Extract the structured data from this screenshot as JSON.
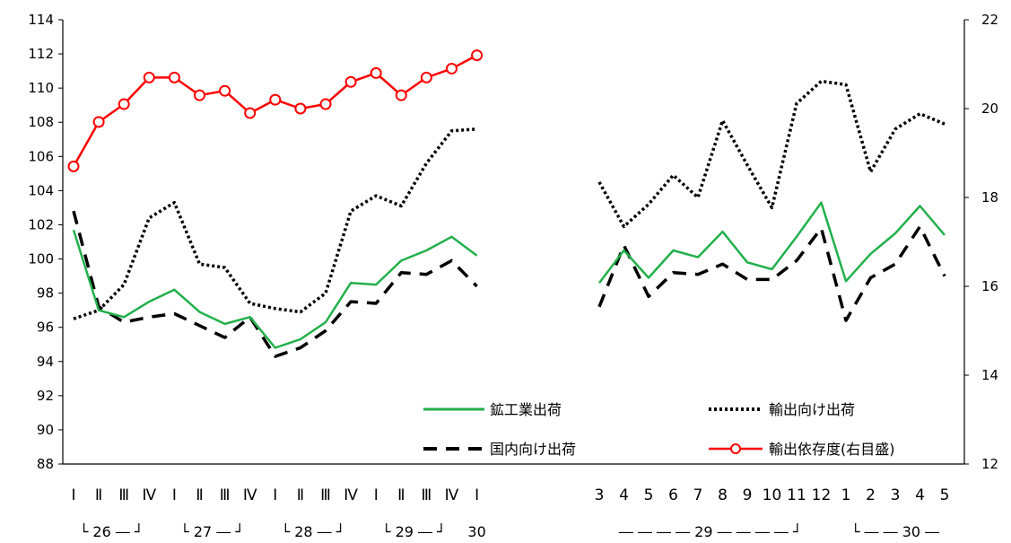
{
  "chart_data": {
    "type": "line",
    "title": "",
    "xlabel": "",
    "ylabel": "",
    "ylim": [
      88,
      114
    ],
    "y2lim": [
      12,
      22
    ],
    "yticks": [
      88,
      90,
      92,
      94,
      96,
      98,
      100,
      102,
      104,
      106,
      108,
      110,
      112,
      114
    ],
    "y2ticks": [
      12,
      14,
      16,
      18,
      20,
      22
    ],
    "grid": false,
    "legend_position": "bottom-right inside plot",
    "colors": {
      "mining": "#22b04b",
      "domestic": "#000000",
      "export": "#000000",
      "dependency": "#ff0000"
    },
    "quarter_labels": [
      "Ⅰ",
      "Ⅱ",
      "Ⅲ",
      "Ⅳ",
      "Ⅰ",
      "Ⅱ",
      "Ⅲ",
      "Ⅳ",
      "Ⅰ",
      "Ⅱ",
      "Ⅲ",
      "Ⅳ",
      "Ⅰ",
      "Ⅱ",
      "Ⅲ",
      "Ⅳ",
      "Ⅰ"
    ],
    "month_labels": [
      "3",
      "4",
      "5",
      "6",
      "7",
      "8",
      "9",
      "10",
      "11",
      "12",
      "1",
      "2",
      "3",
      "4",
      "5"
    ],
    "quarter_group_labels": [
      "└ 26 ― ┘",
      "└ 27 ― ┘",
      "└ 28 ― ┘",
      "└ 29 ― ┘",
      "30"
    ],
    "month_group_labels": [
      "― ― ― ― 29 ― ― ― ― ┘",
      "└ ― ― 30 ―"
    ],
    "legend": {
      "mining": "鉱工業出荷",
      "export": "輸出向け出荷",
      "domestic": "国内向け出荷",
      "dependency": "輸出依存度(右目盛)"
    },
    "series": [
      {
        "key": "mining",
        "name": "鉱工業出荷",
        "axis": "left",
        "quarterly": [
          101.7,
          97.0,
          96.6,
          97.5,
          98.2,
          96.9,
          96.2,
          96.6,
          94.8,
          95.3,
          96.3,
          98.6,
          98.5,
          99.9,
          100.5,
          101.3,
          100.2
        ],
        "monthly": [
          98.6,
          100.5,
          98.9,
          100.5,
          100.1,
          101.6,
          99.8,
          99.4,
          101.3,
          103.3,
          98.7,
          100.3,
          101.5,
          103.1,
          101.4
        ]
      },
      {
        "key": "export",
        "name": "輸出向け出荷",
        "axis": "left",
        "quarterly": [
          96.5,
          97.0,
          98.5,
          102.4,
          103.3,
          99.7,
          99.5,
          97.4,
          97.1,
          96.9,
          98.0,
          102.8,
          103.7,
          103.1,
          105.6,
          107.5,
          107.6
        ],
        "monthly": [
          104.5,
          101.9,
          103.2,
          104.9,
          103.6,
          108.1,
          105.5,
          103.0,
          109.1,
          110.4,
          110.2,
          105.1,
          107.6,
          108.5,
          107.9
        ]
      },
      {
        "key": "domestic",
        "name": "国内向け出荷",
        "axis": "left",
        "quarterly": [
          102.8,
          97.2,
          96.3,
          96.6,
          96.8,
          96.1,
          95.4,
          96.6,
          94.3,
          94.8,
          95.8,
          97.5,
          97.4,
          99.2,
          99.1,
          99.9,
          98.4
        ],
        "monthly": [
          97.2,
          100.8,
          97.8,
          99.2,
          99.1,
          99.7,
          98.8,
          98.8,
          99.9,
          101.8,
          96.4,
          98.9,
          99.7,
          101.9,
          99.0
        ]
      },
      {
        "key": "dependency",
        "name": "輸出依存度(右目盛)",
        "axis": "right",
        "quarterly": [
          18.7,
          19.7,
          20.1,
          20.7,
          20.7,
          20.3,
          20.4,
          19.9,
          20.2,
          20.0,
          20.1,
          20.6,
          20.8,
          20.3,
          20.7,
          20.9,
          21.2
        ]
      }
    ]
  }
}
